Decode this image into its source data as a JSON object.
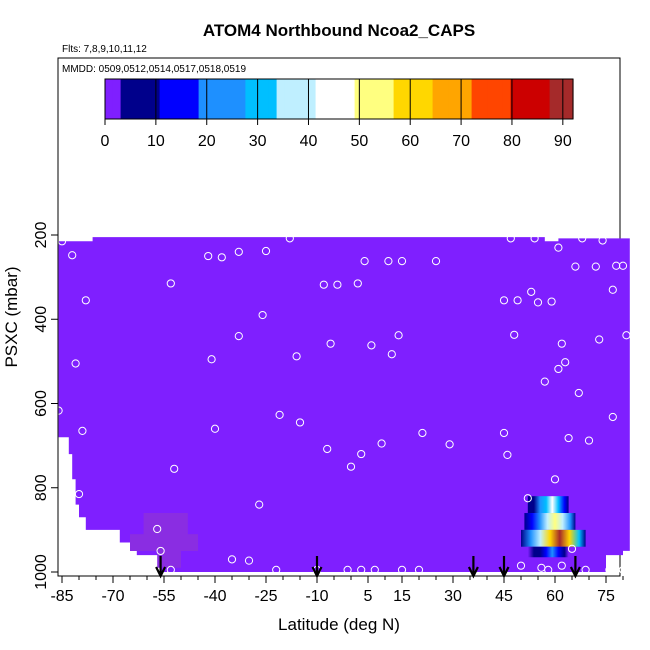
{
  "chart_data": {
    "type": "heatmap",
    "title": "ATOM4 Northbound Ncoa2_CAPS",
    "subtitle_flights": "Flts: 7,8,9,10,11,12",
    "subtitle_dates": "MMDD: 0509,0512,0514,0517,0518,0519",
    "xlabel": "Latitude (deg N)",
    "ylabel": "PSXC (mbar)",
    "xlim": [
      -87,
      82
    ],
    "ylim": [
      1010,
      100
    ],
    "x_ticks": [
      "-85",
      "-70",
      "-55",
      "-40",
      "-25",
      "-10",
      "5",
      "15",
      "30",
      "45",
      "60",
      "75"
    ],
    "y_ticks": [
      "200",
      "400",
      "600",
      "800",
      "1000"
    ],
    "y_tick_values": [
      200,
      400,
      600,
      800,
      1000
    ],
    "colorbar": {
      "min": 0,
      "max": 92,
      "ticks": [
        "0",
        "10",
        "20",
        "30",
        "40",
        "50",
        "60",
        "70",
        "80",
        "90"
      ],
      "tick_values": [
        0,
        10,
        20,
        30,
        40,
        50,
        60,
        70,
        80,
        90
      ],
      "colors": [
        "#7f1fff",
        "#00008b",
        "#0000ff",
        "#1e90ff",
        "#00bfff",
        "#bfefff",
        "#ffffff",
        "#ffff80",
        "#ffd700",
        "#ffa500",
        "#ff4500",
        "#cc0000",
        "#a52a2a"
      ]
    },
    "field_background_value": 0,
    "hotspot": {
      "lat_range": [
        50,
        69
      ],
      "pressure_range": [
        820,
        960
      ],
      "max_value": 92,
      "note": "enhanced values near 55-65N in lower troposphere"
    },
    "sample_points": [
      [
        -85,
        215
      ],
      [
        -82,
        248
      ],
      [
        -81,
        505
      ],
      [
        -80,
        815
      ],
      [
        -79,
        665
      ],
      [
        -78,
        355
      ],
      [
        -86,
        617
      ],
      [
        -57,
        898
      ],
      [
        -56,
        950
      ],
      [
        -53,
        995
      ],
      [
        -52,
        755
      ],
      [
        -53,
        315
      ],
      [
        -42,
        250
      ],
      [
        -41,
        495
      ],
      [
        -40,
        660
      ],
      [
        -38,
        253
      ],
      [
        -35,
        970
      ],
      [
        -33,
        240
      ],
      [
        -33,
        440
      ],
      [
        -30,
        973
      ],
      [
        -27,
        840
      ],
      [
        -26,
        390
      ],
      [
        -25,
        238
      ],
      [
        -22,
        995
      ],
      [
        -21,
        627
      ],
      [
        -18,
        208
      ],
      [
        -16,
        488
      ],
      [
        -15,
        645
      ],
      [
        -10,
        995
      ],
      [
        -8,
        318
      ],
      [
        -7,
        708
      ],
      [
        -6,
        458
      ],
      [
        -4,
        318
      ],
      [
        -1,
        995
      ],
      [
        0,
        750
      ],
      [
        2,
        315
      ],
      [
        3,
        995
      ],
      [
        3,
        720
      ],
      [
        4,
        262
      ],
      [
        6,
        462
      ],
      [
        7,
        995
      ],
      [
        9,
        695
      ],
      [
        11,
        262
      ],
      [
        12,
        483
      ],
      [
        14,
        438
      ],
      [
        15,
        995
      ],
      [
        15,
        262
      ],
      [
        20,
        995
      ],
      [
        21,
        670
      ],
      [
        25,
        262
      ],
      [
        29,
        697
      ],
      [
        45,
        355
      ],
      [
        45,
        670
      ],
      [
        46,
        722
      ],
      [
        47,
        208
      ],
      [
        48,
        437
      ],
      [
        49,
        355
      ],
      [
        50,
        985
      ],
      [
        52,
        825
      ],
      [
        53,
        335
      ],
      [
        54,
        208
      ],
      [
        55,
        360
      ],
      [
        56,
        990
      ],
      [
        57,
        548
      ],
      [
        58,
        995
      ],
      [
        59,
        358
      ],
      [
        60,
        780
      ],
      [
        61,
        518
      ],
      [
        61,
        230
      ],
      [
        62,
        458
      ],
      [
        62,
        985
      ],
      [
        63,
        502
      ],
      [
        64,
        682
      ],
      [
        65,
        945
      ],
      [
        66,
        275
      ],
      [
        67,
        575
      ],
      [
        68,
        208
      ],
      [
        69,
        995
      ],
      [
        70,
        688
      ],
      [
        72,
        275
      ],
      [
        73,
        448
      ],
      [
        74,
        213
      ],
      [
        76,
        995
      ],
      [
        77,
        330
      ],
      [
        77,
        632
      ],
      [
        78,
        273
      ],
      [
        80,
        995
      ],
      [
        80,
        273
      ],
      [
        81,
        438
      ]
    ],
    "flight_markers": [
      -56,
      -10,
      36,
      45,
      66
    ]
  }
}
